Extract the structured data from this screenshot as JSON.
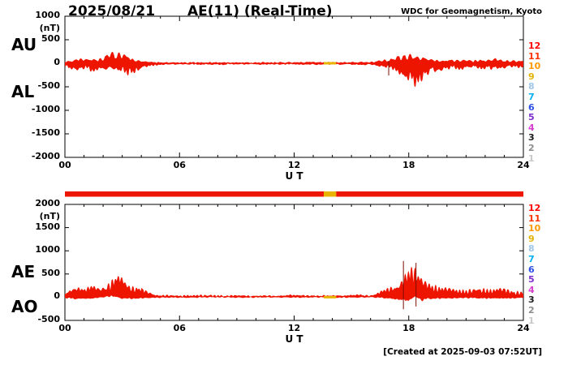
{
  "header": {
    "date": "2025/08/21",
    "title": "AE(11) (Real-Time)",
    "source": "WDC for Geomagnetism, Kyoto"
  },
  "footer": {
    "created": "[Created at 2025-09-03 07:52UT]"
  },
  "colors": {
    "trace_fill": "#ee1500",
    "spike": "#7a0c00",
    "axis": "#000000",
    "background": "#ffffff"
  },
  "scale_legend": {
    "levels": [
      {
        "label": "12",
        "color": "#ff0000"
      },
      {
        "label": "11",
        "color": "#ff3300"
      },
      {
        "label": "10",
        "color": "#ff9900"
      },
      {
        "label": "9",
        "color": "#e0b400"
      },
      {
        "label": "8",
        "color": "#9fc5e8"
      },
      {
        "label": "7",
        "color": "#00b0f0"
      },
      {
        "label": "6",
        "color": "#2e4fe8"
      },
      {
        "label": "5",
        "color": "#7b2fd0"
      },
      {
        "label": "4",
        "color": "#d63fd0"
      },
      {
        "label": "3",
        "color": "#1a1a1a"
      },
      {
        "label": "2",
        "color": "#8c8c8c"
      },
      {
        "label": "1",
        "color": "#c8c8c8"
      }
    ]
  },
  "activity_bar": {
    "xlim": [
      0,
      24
    ],
    "segments": [
      {
        "start": 0,
        "end": 13.55,
        "color": "#ee1500"
      },
      {
        "start": 13.55,
        "end": 14.2,
        "color": "#e8b400"
      },
      {
        "start": 14.2,
        "end": 24,
        "color": "#ee1500"
      }
    ]
  },
  "chart_data": [
    {
      "type": "area",
      "panel": "AU/AL",
      "ylabel_unit": "(nT)",
      "ylim": [
        -2000,
        1000
      ],
      "yticks": [
        1000,
        500,
        0,
        -500,
        -1000,
        -1500,
        -2000
      ],
      "xlim": [
        0,
        24
      ],
      "xticks": [
        {
          "value": 0,
          "label": "00"
        },
        {
          "value": 6,
          "label": "06"
        },
        {
          "value": 12,
          "label": "12"
        },
        {
          "value": 18,
          "label": "18"
        },
        {
          "value": 24,
          "label": "24"
        }
      ],
      "xlabel": "U T",
      "left_axis_labels": [
        "AU",
        "AL"
      ],
      "zero_mark": {
        "start": 13.55,
        "end": 14.2,
        "color": "#e8b400"
      },
      "spikes": [
        {
          "x": 16.95,
          "ymin": -260,
          "ymax": 50
        }
      ],
      "series": [
        {
          "name": "AU",
          "units": "nT",
          "x": [
            0,
            0.4,
            0.8,
            1.2,
            1.6,
            2,
            2.4,
            2.8,
            3.2,
            3.6,
            4,
            4.5,
            5,
            6,
            8,
            10,
            12,
            13,
            14,
            16,
            16.8,
            17.3,
            17.8,
            18.2,
            18.6,
            19,
            19.5,
            20,
            20.5,
            21,
            21.5,
            22,
            22.5,
            23,
            23.5,
            24
          ],
          "values": [
            40,
            70,
            90,
            110,
            80,
            120,
            230,
            260,
            160,
            90,
            50,
            25,
            15,
            12,
            15,
            12,
            18,
            25,
            15,
            25,
            70,
            130,
            170,
            190,
            140,
            100,
            70,
            55,
            85,
            65,
            60,
            75,
            95,
            65,
            50,
            45
          ]
        },
        {
          "name": "AL",
          "units": "nT",
          "x": [
            0,
            0.3,
            0.7,
            1,
            1.4,
            1.8,
            2.2,
            2.6,
            3,
            3.4,
            3.8,
            4.2,
            4.6,
            5,
            6,
            8,
            10,
            12,
            14,
            16,
            16.8,
            17.3,
            17.7,
            18,
            18.2,
            18.5,
            18.9,
            19.3,
            19.8,
            20.3,
            20.8,
            21.3,
            21.8,
            22.3,
            22.8,
            23.3,
            23.8,
            24
          ],
          "values": [
            -70,
            -130,
            -160,
            -110,
            -190,
            -130,
            -160,
            -130,
            -190,
            -280,
            -150,
            -90,
            -50,
            -30,
            -20,
            -25,
            -18,
            -25,
            -20,
            -30,
            -90,
            -170,
            -300,
            -450,
            -530,
            -430,
            -280,
            -200,
            -150,
            -120,
            -130,
            -95,
            -110,
            -140,
            -115,
            -95,
            -85,
            -75
          ]
        }
      ]
    },
    {
      "type": "area",
      "panel": "AE/AO",
      "ylabel_unit": "(nT)",
      "ylim": [
        -500,
        2000
      ],
      "yticks": [
        2000,
        1500,
        1000,
        500,
        0,
        -500
      ],
      "xlim": [
        0,
        24
      ],
      "xticks": [
        {
          "value": 0,
          "label": "00"
        },
        {
          "value": 6,
          "label": "06"
        },
        {
          "value": 12,
          "label": "12"
        },
        {
          "value": 18,
          "label": "18"
        },
        {
          "value": 24,
          "label": "24"
        }
      ],
      "xlabel": "U T",
      "left_axis_labels": [
        "AE",
        "AO"
      ],
      "zero_mark": {
        "start": 13.55,
        "end": 14.2,
        "color": "#e8b400"
      },
      "spikes": [
        {
          "x": 17.72,
          "ymin": -260,
          "ymax": 780
        },
        {
          "x": 18.38,
          "ymin": -200,
          "ymax": 740
        }
      ],
      "series": [
        {
          "name": "AE",
          "units": "nT",
          "x": [
            0,
            0.3,
            0.7,
            1,
            1.4,
            1.8,
            2.2,
            2.6,
            2.9,
            3.2,
            3.5,
            3.8,
            4.2,
            4.6,
            5,
            6,
            8,
            10,
            12,
            14,
            16,
            16.8,
            17.3,
            17.7,
            18,
            18.2,
            18.5,
            18.9,
            19.3,
            19.8,
            20.3,
            20.8,
            21.3,
            21.8,
            22.3,
            22.8,
            23.3,
            23.8,
            24
          ],
          "values": [
            110,
            190,
            240,
            200,
            280,
            230,
            300,
            420,
            480,
            420,
            300,
            230,
            140,
            80,
            45,
            35,
            40,
            30,
            45,
            35,
            55,
            160,
            300,
            470,
            620,
            660,
            560,
            380,
            290,
            220,
            175,
            215,
            160,
            170,
            230,
            195,
            155,
            135,
            120
          ]
        },
        {
          "name": "AO",
          "units": "nT",
          "x": [
            0,
            0.5,
            1,
            1.5,
            2,
            2.5,
            3,
            3.5,
            4,
            5,
            6,
            8,
            10,
            12,
            14,
            16,
            17,
            17.5,
            18,
            18.3,
            18.7,
            19,
            19.5,
            20,
            21,
            22,
            23,
            24
          ],
          "values": [
            -10,
            -30,
            -35,
            -25,
            10,
            40,
            -25,
            -30,
            -20,
            -5,
            0,
            5,
            0,
            5,
            0,
            5,
            -25,
            -60,
            -80,
            30,
            -70,
            -45,
            -30,
            -20,
            -10,
            -30,
            -20,
            -12
          ]
        }
      ]
    }
  ]
}
